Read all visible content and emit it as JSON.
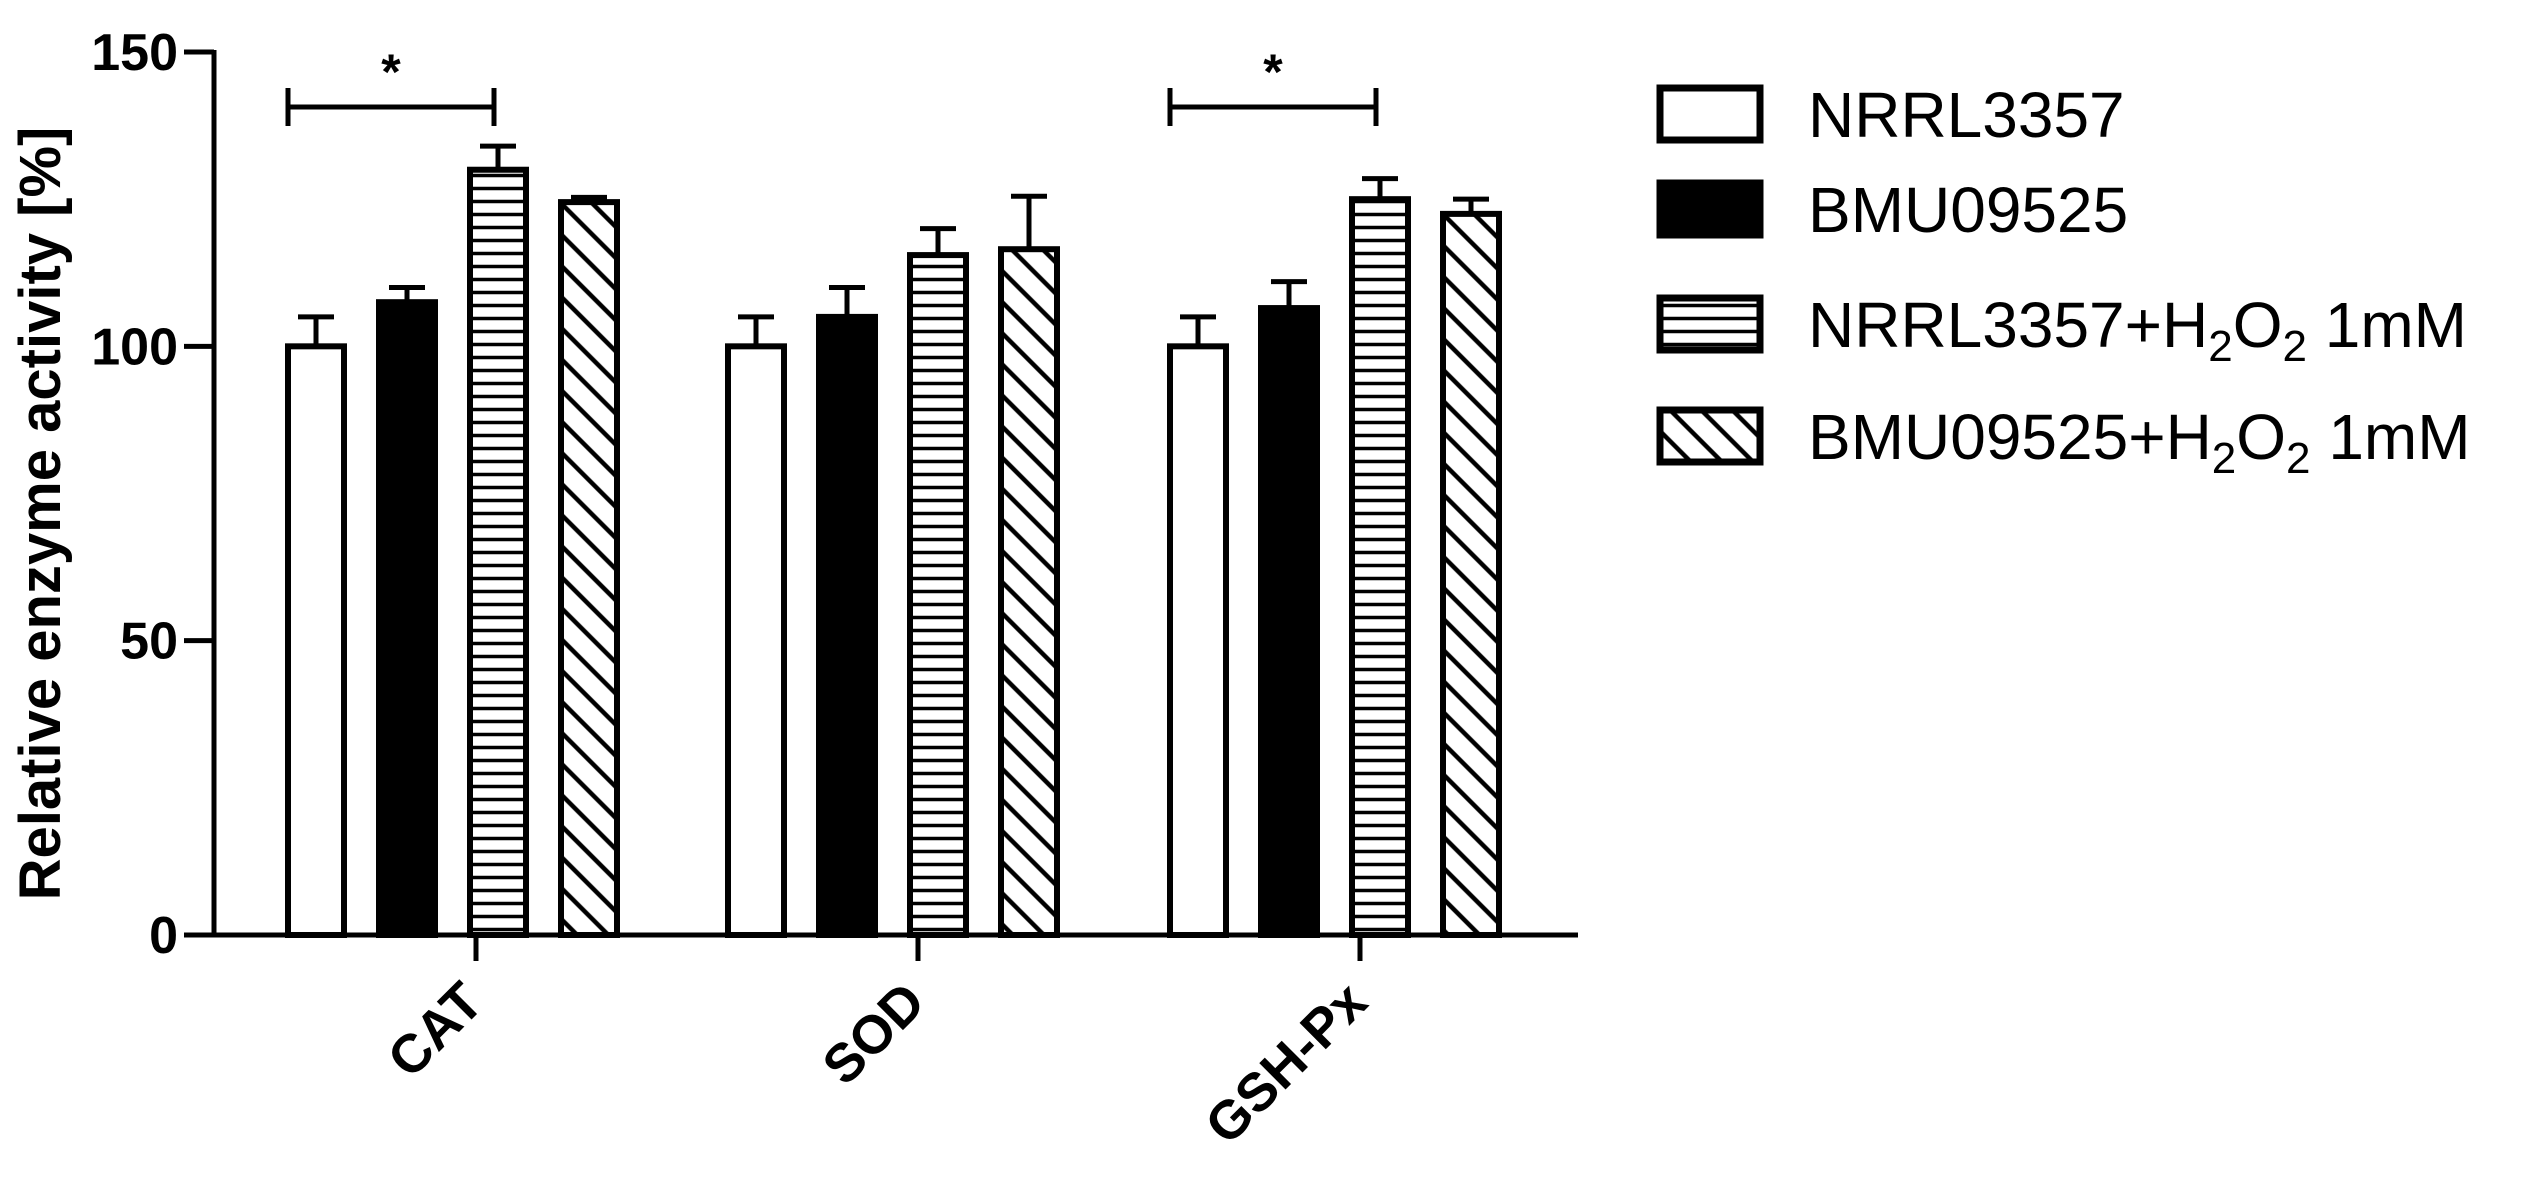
{
  "chart_data": {
    "type": "bar",
    "ylabel": "Relative enzyme activity [%]",
    "ylim": [
      0,
      150
    ],
    "yticks": [
      0,
      50,
      100,
      150
    ],
    "categories": [
      "CAT",
      "SOD",
      "GSH-Px"
    ],
    "series": [
      {
        "name": "NRRL3357",
        "name_parts": [
          [
            "NRRL3357",
            ""
          ]
        ],
        "pattern": "open",
        "values": [
          100,
          100,
          100
        ],
        "errors": [
          5,
          5,
          5
        ]
      },
      {
        "name": "BMU09525",
        "name_parts": [
          [
            "BMU09525",
            ""
          ]
        ],
        "pattern": "solid",
        "values": [
          107.5,
          105,
          106.5
        ],
        "errors": [
          2.5,
          5,
          4.5
        ]
      },
      {
        "name": "NRRL3357+H2O2 1mM",
        "name_parts": [
          [
            "NRRL3357+H",
            ""
          ],
          [
            "2",
            "sub"
          ],
          [
            "O",
            ""
          ],
          [
            "2",
            "sub"
          ],
          [
            " 1mM",
            ""
          ]
        ],
        "pattern": "horizontal-lines",
        "values": [
          130,
          115.5,
          125
        ],
        "errors": [
          4,
          4.5,
          3.5
        ]
      },
      {
        "name": "BMU09525+H2O2 1mM",
        "name_parts": [
          [
            "BMU09525+H",
            ""
          ],
          [
            "2",
            "sub"
          ],
          [
            "O",
            ""
          ],
          [
            "2",
            "sub"
          ],
          [
            " 1mM",
            ""
          ]
        ],
        "pattern": "diagonal-lines",
        "values": [
          124.5,
          116.5,
          122.5
        ],
        "errors": [
          0.8,
          9,
          2.5
        ]
      }
    ],
    "significance": [
      {
        "category": "CAT",
        "from_series": 0,
        "to_series": 2,
        "label": "*"
      },
      {
        "category": "GSH-Px",
        "from_series": 0,
        "to_series": 2,
        "label": "*"
      }
    ],
    "legend": "right",
    "grid": false
  },
  "colors": {
    "ink": "#000000",
    "background": "#ffffff"
  }
}
